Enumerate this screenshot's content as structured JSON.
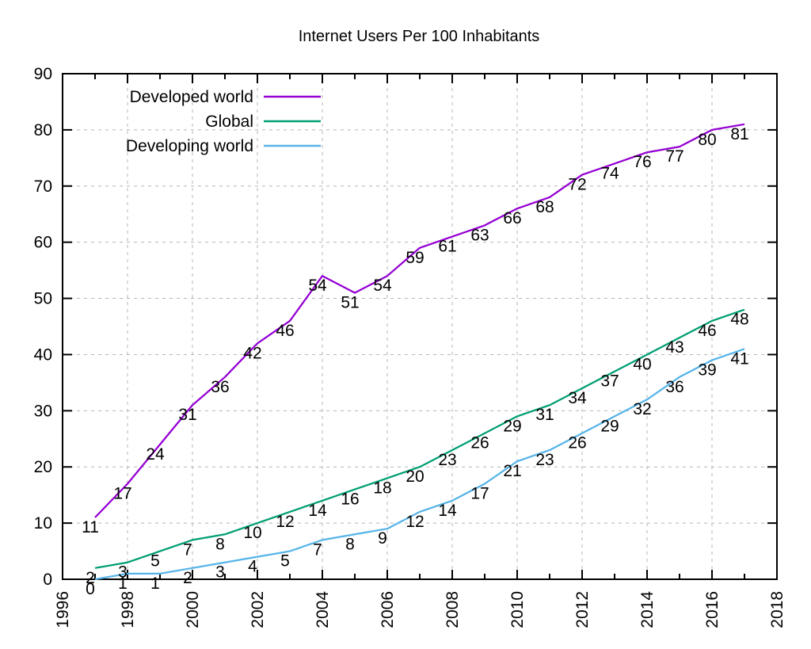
{
  "title": "Internet Users Per 100 Inhabitants",
  "chart_data": {
    "type": "line",
    "title": "Internet Users Per 100 Inhabitants",
    "xlabel": "",
    "ylabel": "",
    "x": [
      1997,
      1998,
      1999,
      2000,
      2001,
      2002,
      2003,
      2004,
      2005,
      2006,
      2007,
      2008,
      2009,
      2010,
      2011,
      2012,
      2013,
      2014,
      2015,
      2016,
      2017
    ],
    "series": [
      {
        "name": "Developed world",
        "color": "#9400d3",
        "values": [
          11,
          17,
          24,
          31,
          36,
          42,
          46,
          54,
          51,
          54,
          59,
          61,
          63,
          66,
          68,
          72,
          74,
          76,
          77,
          80,
          81
        ]
      },
      {
        "name": "Global",
        "color": "#009e73",
        "values": [
          2,
          3,
          5,
          7,
          8,
          10,
          12,
          14,
          16,
          18,
          20,
          23,
          26,
          29,
          31,
          34,
          37,
          40,
          43,
          46,
          48
        ]
      },
      {
        "name": "Developing world",
        "color": "#56b4e9",
        "values": [
          0,
          1,
          1,
          2,
          3,
          4,
          5,
          7,
          8,
          9,
          12,
          14,
          17,
          21,
          23,
          26,
          29,
          32,
          36,
          39,
          41
        ]
      }
    ],
    "xlim": [
      1996,
      2018
    ],
    "ylim": [
      0,
      90
    ],
    "x_ticks_labeled": [
      1996,
      1998,
      2000,
      2002,
      2004,
      2006,
      2008,
      2010,
      2012,
      2014,
      2016,
      2018
    ],
    "x_ticks_minor": [
      1997,
      1999,
      2001,
      2003,
      2005,
      2007,
      2009,
      2011,
      2013,
      2015,
      2017
    ],
    "y_ticks": [
      0,
      10,
      20,
      30,
      40,
      50,
      60,
      70,
      80,
      90
    ],
    "grid": true,
    "grid_color": "#b5b5b5",
    "axis_color": "#000000",
    "legend_position": "top-left-inside",
    "point_labels": true,
    "x_tick_labels_rotated_90": true
  }
}
